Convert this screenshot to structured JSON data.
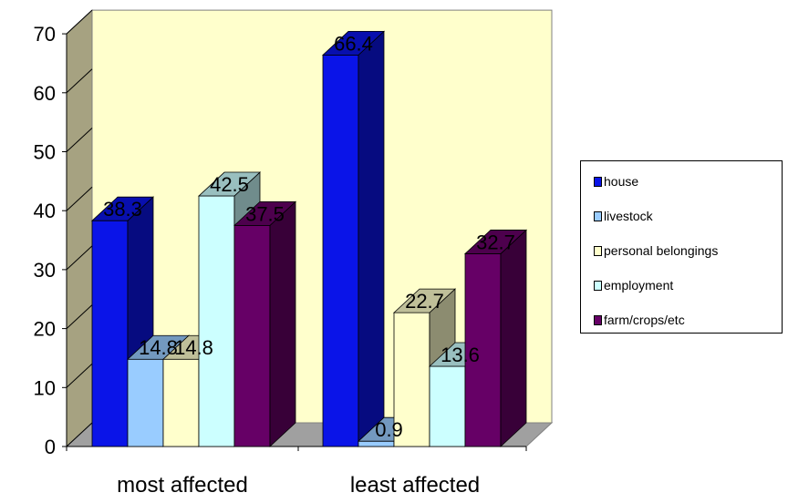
{
  "chart_data": {
    "type": "bar",
    "categories": [
      "most affected",
      "least affected"
    ],
    "series": [
      {
        "name": "house",
        "values": [
          38.3,
          66.4
        ],
        "color": "#0a14e8"
      },
      {
        "name": "livestock",
        "values": [
          14.8,
          0.9
        ],
        "color": "#99ccff"
      },
      {
        "name": "personal belongings",
        "values": [
          14.8,
          22.7
        ],
        "color": "#ffffcc"
      },
      {
        "name": "employment",
        "values": [
          42.5,
          13.6
        ],
        "color": "#ccffff"
      },
      {
        "name": "farm/crops/etc",
        "values": [
          37.5,
          32.7
        ],
        "color": "#660066"
      }
    ],
    "data_labels": [
      [
        "38.3",
        "66.4"
      ],
      [
        "14.8",
        "0.9"
      ],
      [
        "14.8",
        "22.7"
      ],
      [
        "42.5",
        "13.6"
      ],
      [
        "37.5",
        "32.7"
      ]
    ],
    "ylim": [
      0,
      70
    ],
    "yticks": [
      "0",
      "10",
      "20",
      "30",
      "40",
      "50",
      "60",
      "70"
    ],
    "xlabel": "",
    "ylabel": "",
    "legend_position": "right",
    "style": "3d",
    "wall_color": "#ffffcc",
    "side_wall_color": "#a6a281",
    "floor_color": "#a0a0a0",
    "grid": false
  }
}
